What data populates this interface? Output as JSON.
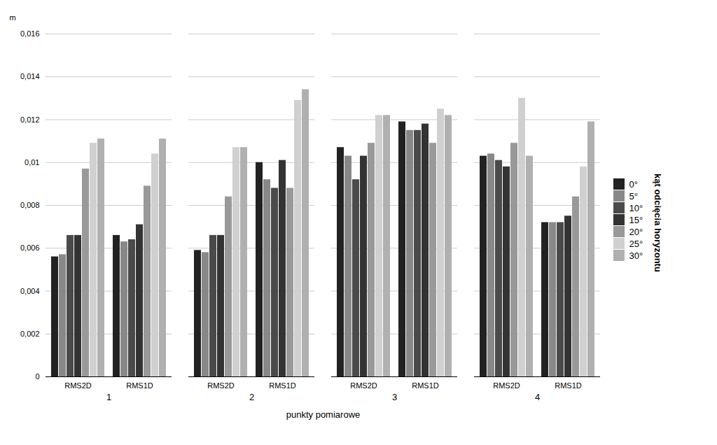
{
  "chart_data": {
    "type": "bar",
    "categories": [
      "RMS2D",
      "RMS1D",
      "RMS2D",
      "RMS1D",
      "RMS2D",
      "RMS1D",
      "RMS2D",
      "RMS1D"
    ],
    "category_groups": [
      "1",
      "1",
      "2",
      "2",
      "3",
      "3",
      "4",
      "4"
    ],
    "xlabel": "punkty pomiarowe",
    "ylabel": "m",
    "legend_title": "kąt odcięcia horyzontu",
    "series": [
      {
        "name": "0°",
        "color": "#222222",
        "values": [
          0.0056,
          0.0066,
          0.0059,
          0.01,
          0.0107,
          0.0119,
          0.0103,
          0.0072
        ]
      },
      {
        "name": "5°",
        "color": "#888888",
        "values": [
          0.0057,
          0.0063,
          0.0058,
          0.0092,
          0.0103,
          0.0115,
          0.0104,
          0.0072
        ]
      },
      {
        "name": "10°",
        "color": "#4a4a4a",
        "values": [
          0.0066,
          0.0064,
          0.0066,
          0.0088,
          0.0092,
          0.0115,
          0.0101,
          0.0072
        ]
      },
      {
        "name": "15°",
        "color": "#333333",
        "values": [
          0.0066,
          0.0071,
          0.0066,
          0.0101,
          0.0103,
          0.0118,
          0.0098,
          0.0075
        ]
      },
      {
        "name": "20°",
        "color": "#999999",
        "values": [
          0.0097,
          0.0089,
          0.0084,
          0.0088,
          0.0109,
          0.0109,
          0.0109,
          0.0084
        ]
      },
      {
        "name": "25°",
        "color": "#d0d0d0",
        "values": [
          0.0109,
          0.0104,
          0.0107,
          0.0129,
          0.0122,
          0.0125,
          0.013,
          0.0098
        ]
      },
      {
        "name": "30°",
        "color": "#b0b0b0",
        "values": [
          0.0111,
          0.0111,
          0.0107,
          0.0134,
          0.0122,
          0.0122,
          0.0103,
          0.0119
        ]
      }
    ],
    "ylim": [
      0,
      0.016
    ],
    "yticks": [
      0,
      {
        "value": 0.002,
        "label": "0,002"
      },
      {
        "value": 0.004,
        "label": "0,004"
      },
      {
        "value": 0.006,
        "label": "0,006"
      },
      {
        "value": 0.008,
        "label": "0,008"
      },
      {
        "value": 0.01,
        "label": "0,01"
      },
      {
        "value": 0.012,
        "label": "0,012"
      },
      {
        "value": 0.014,
        "label": "0,014"
      },
      {
        "value": 0.016,
        "label": "0,016"
      }
    ],
    "grid": true,
    "legend": "right"
  }
}
